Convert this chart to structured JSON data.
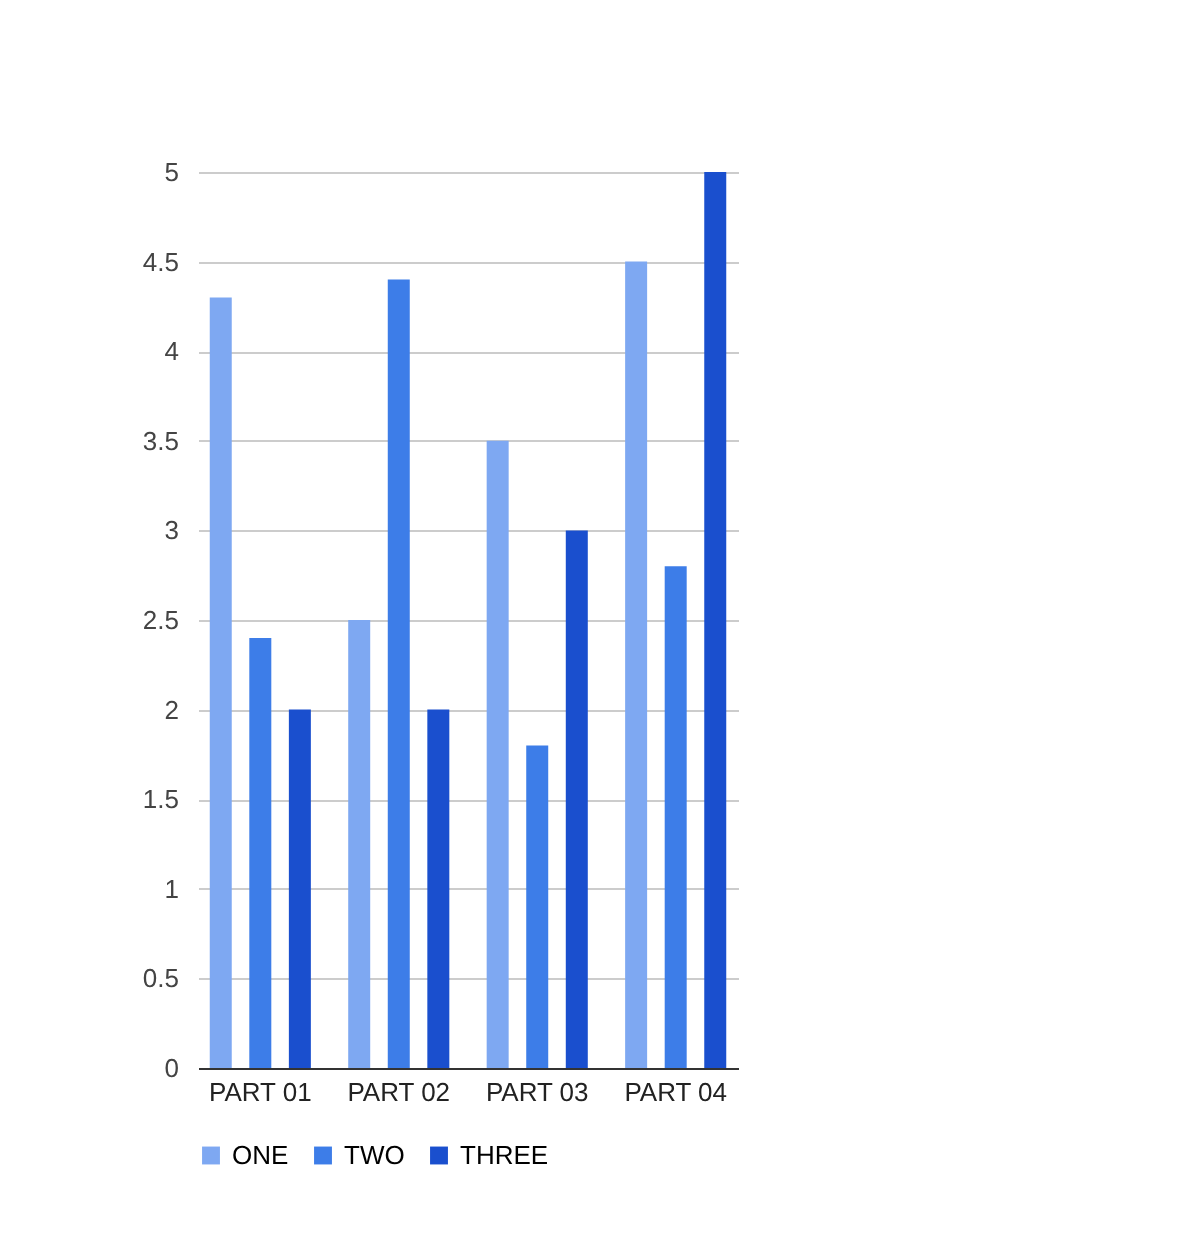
{
  "chart_data": {
    "type": "bar",
    "categories": [
      "PART 01",
      "PART 02",
      "PART 03",
      "PART 04"
    ],
    "series": [
      {
        "name": "ONE",
        "color": "#7ea8f2",
        "values": [
          4.3,
          2.5,
          3.5,
          4.5
        ]
      },
      {
        "name": "TWO",
        "color": "#3d7de8",
        "values": [
          2.4,
          4.4,
          1.8,
          2.8
        ]
      },
      {
        "name": "THREE",
        "color": "#1a4fce",
        "values": [
          2,
          2,
          3,
          5
        ]
      }
    ],
    "ylim": [
      0,
      5
    ],
    "yticks": [
      0,
      0.5,
      1,
      1.5,
      2,
      2.5,
      3,
      3.5,
      4,
      4.5,
      5
    ],
    "grid": "y",
    "legend": "bottom"
  }
}
